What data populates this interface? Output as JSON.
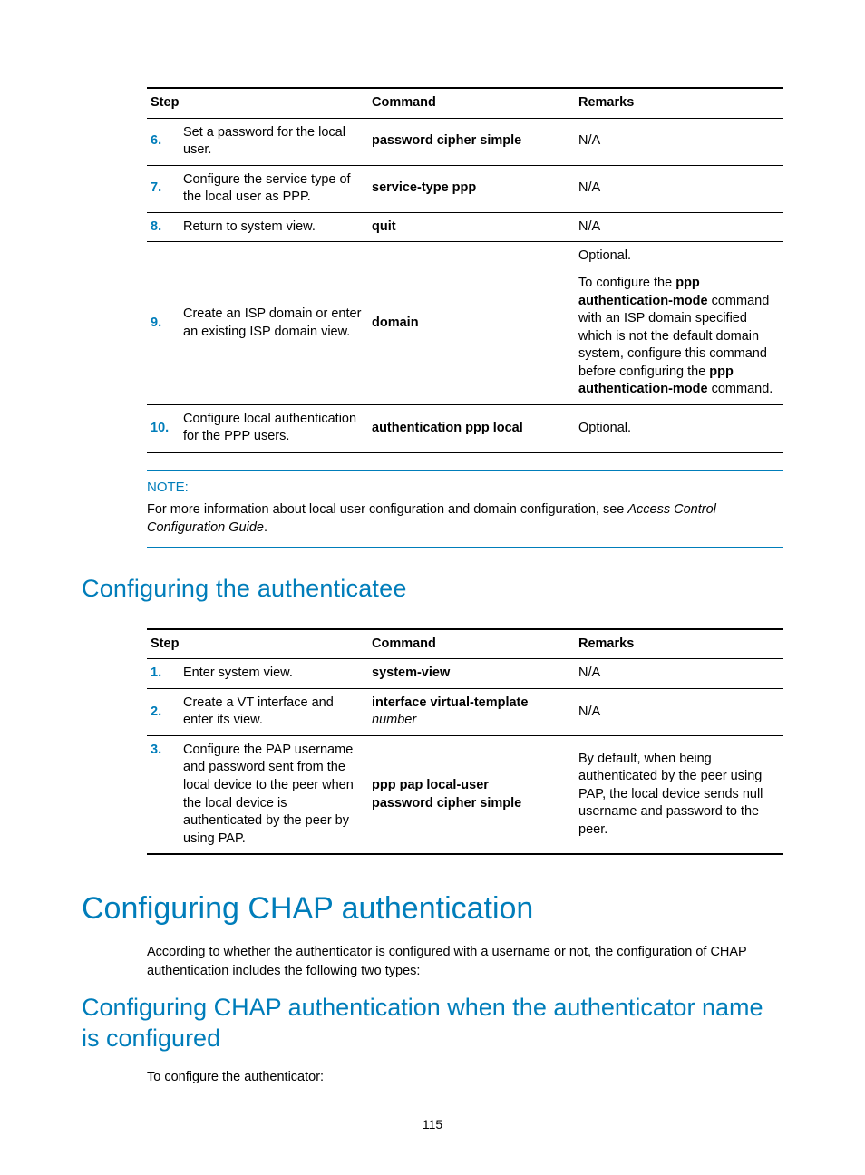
{
  "page_number": "115",
  "colors": {
    "accent": "#007dba",
    "text": "#000000",
    "bg": "#ffffff"
  },
  "table1": {
    "headers": {
      "step": "Step",
      "command": "Command",
      "remarks": "Remarks"
    },
    "rows": [
      {
        "num": "6.",
        "desc": "Set a password for the local user.",
        "cmd_pre": "password ",
        "cmd_bold2": "cipher",
        "cmd_mid": "  ",
        "cmd_bold3": "simple",
        "cmd_post": "",
        "remarks_plain": "N/A"
      },
      {
        "num": "7.",
        "desc": "Configure the service type of the local user as PPP.",
        "cmd": "service-type ppp",
        "remarks_plain": "N/A"
      },
      {
        "num": "8.",
        "desc": "Return to system view.",
        "cmd": "quit",
        "remarks_plain": "N/A"
      },
      {
        "num": "9.",
        "desc": "Create an ISP domain or enter an existing ISP domain view.",
        "cmd": "domain",
        "remarks_block": {
          "p1": "Optional.",
          "p2_pre": "To configure the ",
          "p2_b1": "ppp authentication-mode",
          "p2_mid": " command with an ISP domain specified which is not the default domain system, configure this command before configuring the ",
          "p2_b2": "ppp authentication-mode",
          "p2_post": " command."
        }
      },
      {
        "num": "10.",
        "desc": "Configure local authentication for the PPP users.",
        "cmd": "authentication ppp local",
        "remarks_plain": "Optional."
      }
    ]
  },
  "note": {
    "label": "NOTE:",
    "body_pre": "For more information about local user configuration and domain configuration, see ",
    "body_em": "Access Control Configuration Guide",
    "body_post": "."
  },
  "h2_authenticatee": "Configuring the authenticatee",
  "table2": {
    "headers": {
      "step": "Step",
      "command": "Command",
      "remarks": "Remarks"
    },
    "rows": [
      {
        "num": "1.",
        "desc": "Enter system view.",
        "cmd": "system-view",
        "remarks_plain": "N/A"
      },
      {
        "num": "2.",
        "desc": "Create a VT interface and enter its view.",
        "cmd_bold": "interface virtual-template",
        "cmd_param": " number",
        "remarks_plain": "N/A"
      },
      {
        "num": "3.",
        "desc": "Configure the PAP username and password sent from the local device to the peer when the local device is authenticated by the peer by using PAP.",
        "cmd_line1": "ppp pap local-user",
        "cmd_line2_pre": "password  ",
        "cmd_line2_b1": "cipher",
        "cmd_line2_mid": "  ",
        "cmd_line2_b2": "simple",
        "remarks_plain": "By default, when being authenticated by the peer using PAP, the local device sends null username and password to the peer."
      }
    ]
  },
  "h1_chap": "Configuring CHAP authentication",
  "chap_intro": "According to whether the authenticator is configured with a username or not, the configuration of CHAP authentication includes the following two types:",
  "h2_chap_sub": "Configuring CHAP authentication when the authenticator name is configured",
  "chap_to": "To configure the authenticator:"
}
